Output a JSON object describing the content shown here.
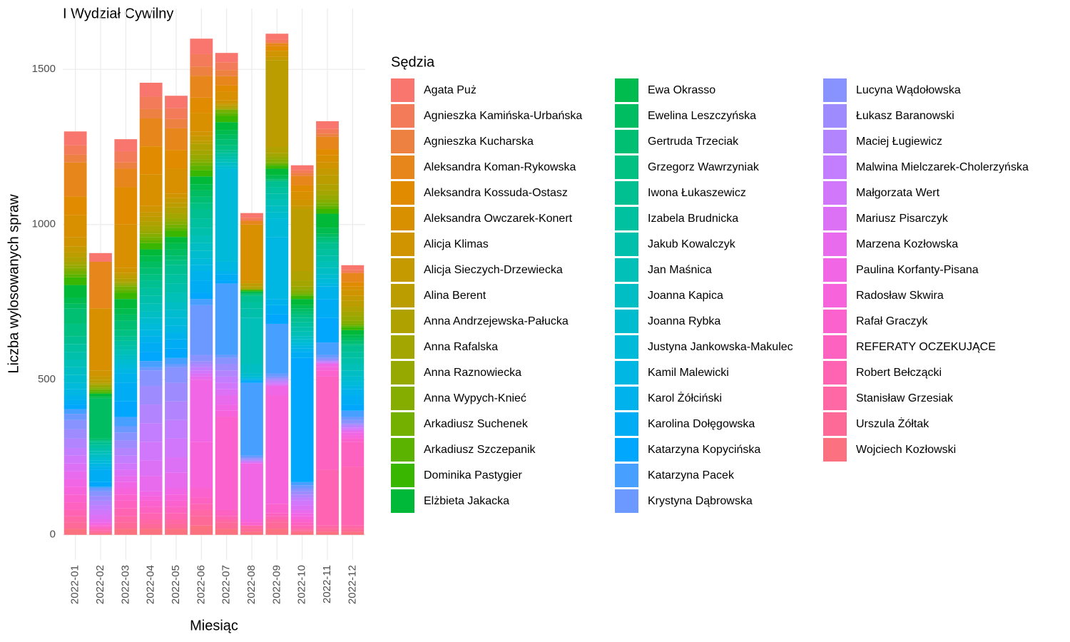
{
  "chart_data": {
    "type": "bar",
    "stacked": true,
    "title": "I Wydział Cywilny",
    "x_label": "Miesiąc",
    "y_label": "Liczba wylosowanych spraw",
    "legend_title": "Sędzia",
    "categories": [
      "2022-01",
      "2022-02",
      "2022-03",
      "2022-04",
      "2022-05",
      "2022-06",
      "2022-07",
      "2022-08",
      "2022-09",
      "2022-10",
      "2022-11",
      "2022-12"
    ],
    "ylim": [
      -81,
      1696
    ],
    "yticks": [
      0,
      500,
      1000,
      1500
    ],
    "grid": true,
    "legend_position": "right",
    "series": [
      {
        "name": "Agata Puż",
        "color": "#F8766D",
        "values": [
          45,
          28,
          40,
          45,
          40,
          50,
          30,
          15,
          20,
          15,
          25,
          15
        ]
      },
      {
        "name": "Agnieszka Kamińska-Urbańska",
        "color": "#F37B59",
        "values": [
          30,
          0,
          35,
          40,
          35,
          40,
          25,
          10,
          10,
          10,
          15,
          10
        ]
      },
      {
        "name": "Agnieszka Kucharska",
        "color": "#ED8141",
        "values": [
          25,
          0,
          20,
          30,
          30,
          30,
          20,
          0,
          0,
          10,
          10,
          0
        ]
      },
      {
        "name": "Aleksandra Koman-Rykowska",
        "color": "#E7861B",
        "values": [
          110,
          150,
          60,
          90,
          70,
          70,
          30,
          12,
          10,
          30,
          40,
          30
        ]
      },
      {
        "name": "Aleksandra Kossuda-Ostasz",
        "color": "#E08B00",
        "values": [
          60,
          0,
          120,
          90,
          60,
          50,
          20,
          0,
          15,
          20,
          20,
          14
        ]
      },
      {
        "name": "Aleksandra Owczarek-Konert",
        "color": "#D89000",
        "values": [
          70,
          200,
          140,
          102,
          80,
          59,
          28,
          180,
          0,
          26,
          23,
          10
        ]
      },
      {
        "name": "Alicja Klimas",
        "color": "#CF9400",
        "values": [
          30,
          20,
          15,
          20,
          15,
          15,
          10,
          10,
          20,
          20,
          20,
          20
        ]
      },
      {
        "name": "Alicja Sieczych-Drzewiecka",
        "color": "#C59900",
        "values": [
          20,
          10,
          10,
          15,
          15,
          15,
          5,
          0,
          10,
          10,
          20,
          15
        ]
      },
      {
        "name": "Alina Berent",
        "color": "#BB9D00",
        "values": [
          15,
          10,
          10,
          15,
          15,
          10,
          5,
          10,
          280,
          200,
          30,
          20
        ]
      },
      {
        "name": "Anna Andrzejewska-Pałucka",
        "color": "#AFA100",
        "values": [
          15,
          5,
          10,
          15,
          20,
          20,
          5,
          5,
          20,
          30,
          20,
          15
        ]
      },
      {
        "name": "Anna Rafalska",
        "color": "#A3A500",
        "values": [
          10,
          5,
          5,
          15,
          15,
          15,
          5,
          5,
          10,
          20,
          15,
          15
        ]
      },
      {
        "name": "Anna Raznowiecka",
        "color": "#95A900",
        "values": [
          10,
          5,
          5,
          10,
          10,
          15,
          0,
          0,
          10,
          10,
          15,
          15
        ]
      },
      {
        "name": "Anna Wypych-Knieć",
        "color": "#85AD00",
        "values": [
          10,
          5,
          5,
          10,
          10,
          10,
          0,
          0,
          10,
          10,
          10,
          10
        ]
      },
      {
        "name": "Arkadiusz Suchenek",
        "color": "#73B000",
        "values": [
          10,
          5,
          10,
          10,
          10,
          10,
          10,
          0,
          5,
          5,
          10,
          5
        ]
      },
      {
        "name": "Arkadiusz Szczepanik",
        "color": "#5BB300",
        "values": [
          10,
          5,
          10,
          10,
          10,
          15,
          10,
          0,
          5,
          5,
          10,
          5
        ]
      },
      {
        "name": "Dominika Pastygier",
        "color": "#39B600",
        "values": [
          25,
          5,
          20,
          20,
          20,
          20,
          20,
          5,
          10,
          10,
          15,
          10
        ]
      },
      {
        "name": "Elżbieta Jakacka",
        "color": "#00B938",
        "values": [
          40,
          10,
          30,
          20,
          20,
          25,
          25,
          5,
          20,
          20,
          45,
          15
        ]
      },
      {
        "name": "Ewa Okrasso",
        "color": "#00BB4E",
        "values": [
          20,
          5,
          20,
          20,
          20,
          20,
          15,
          0,
          10,
          10,
          20,
          10
        ]
      },
      {
        "name": "Ewelina Leszczyńska",
        "color": "#00BD61",
        "values": [
          15,
          130,
          20,
          20,
          20,
          20,
          15,
          5,
          5,
          10,
          10,
          10
        ]
      },
      {
        "name": "Gertruda Trzeciak",
        "color": "#00BF72",
        "values": [
          50,
          5,
          30,
          20,
          15,
          20,
          20,
          5,
          5,
          10,
          10,
          10
        ]
      },
      {
        "name": "Grzegorz Wawrzyniak",
        "color": "#00C082",
        "values": [
          40,
          5,
          20,
          20,
          15,
          20,
          15,
          0,
          0,
          10,
          10,
          5
        ]
      },
      {
        "name": "Iwona Łukaszewicz",
        "color": "#00C091",
        "values": [
          25,
          10,
          15,
          25,
          30,
          30,
          10,
          20,
          20,
          15,
          20,
          20
        ]
      },
      {
        "name": "Izabela Brudnicka",
        "color": "#00C19F",
        "values": [
          25,
          10,
          15,
          25,
          30,
          30,
          10,
          20,
          20,
          15,
          20,
          20
        ]
      },
      {
        "name": "Jakub Kowalczyk",
        "color": "#00C0AC",
        "values": [
          25,
          10,
          15,
          25,
          30,
          25,
          10,
          30,
          20,
          15,
          20,
          20
        ]
      },
      {
        "name": "Jan Maśnica",
        "color": "#00C0B8",
        "values": [
          25,
          10,
          15,
          25,
          30,
          25,
          10,
          150,
          20,
          15,
          20,
          20
        ]
      },
      {
        "name": "Joanna Kapica",
        "color": "#00BEC4",
        "values": [
          25,
          10,
          15,
          20,
          25,
          25,
          10,
          30,
          20,
          10,
          20,
          20
        ]
      },
      {
        "name": "Joanna Rybka",
        "color": "#00BCCF",
        "values": [
          25,
          10,
          15,
          20,
          25,
          25,
          10,
          10,
          20,
          10,
          15,
          15
        ]
      },
      {
        "name": "Justyna Jankowska-Makulec",
        "color": "#00BAD9",
        "values": [
          20,
          10,
          15,
          20,
          25,
          20,
          300,
          5,
          60,
          10,
          15,
          15
        ]
      },
      {
        "name": "Kamil Malewicki",
        "color": "#00B6E3",
        "values": [
          20,
          10,
          15,
          20,
          25,
          20,
          30,
          5,
          200,
          10,
          10,
          10
        ]
      },
      {
        "name": "Karol Żółciński",
        "color": "#00B2EC",
        "values": [
          15,
          10,
          30,
          20,
          20,
          30,
          10,
          0,
          20,
          10,
          40,
          20
        ]
      },
      {
        "name": "Karolina Dołęgowska",
        "color": "#00ADF5",
        "values": [
          15,
          40,
          60,
          30,
          30,
          40,
          20,
          5,
          30,
          20,
          60,
          30
        ]
      },
      {
        "name": "Katarzyna Kopycińska",
        "color": "#00A7FC",
        "values": [
          15,
          15,
          50,
          30,
          30,
          20,
          10,
          5,
          30,
          400,
          80,
          20
        ]
      },
      {
        "name": "Katarzyna Pacek",
        "color": "#47A0FF",
        "values": [
          15,
          5,
          30,
          20,
          20,
          20,
          230,
          235,
          160,
          10,
          40,
          20
        ]
      },
      {
        "name": "Krystyna Dąbrowska",
        "color": "#6C99FF",
        "values": [
          20,
          10,
          20,
          10,
          10,
          160,
          10,
          5,
          10,
          10,
          10,
          10
        ]
      },
      {
        "name": "Lucyna Wądołowska",
        "color": "#8893FF",
        "values": [
          30,
          15,
          25,
          50,
          50,
          20,
          20,
          5,
          5,
          10,
          5,
          10
        ]
      },
      {
        "name": "Łukasz Baranowski",
        "color": "#9E8CFF",
        "values": [
          30,
          15,
          25,
          60,
          60,
          10,
          20,
          5,
          5,
          10,
          5,
          5
        ]
      },
      {
        "name": "Maciej Ługiewicz",
        "color": "#B285FF",
        "values": [
          30,
          15,
          25,
          60,
          60,
          10,
          20,
          0,
          5,
          10,
          0,
          5
        ]
      },
      {
        "name": "Malwina Mielczarek-Cholerzyńska",
        "color": "#C37EFF",
        "values": [
          25,
          15,
          25,
          60,
          60,
          10,
          20,
          5,
          5,
          10,
          5,
          5
        ]
      },
      {
        "name": "Małgorzata Wert",
        "color": "#D177FC",
        "values": [
          25,
          15,
          20,
          60,
          60,
          10,
          20,
          0,
          5,
          15,
          0,
          5
        ]
      },
      {
        "name": "Mariusz Pisarczyk",
        "color": "#DD71F6",
        "values": [
          25,
          15,
          20,
          50,
          50,
          10,
          20,
          5,
          5,
          15,
          5,
          5
        ]
      },
      {
        "name": "Marzena Kozłowska",
        "color": "#E86BEE",
        "values": [
          25,
          10,
          20,
          50,
          50,
          10,
          30,
          0,
          0,
          10,
          0,
          5
        ]
      },
      {
        "name": "Paulina Korfanty-Pisana",
        "color": "#F066E4",
        "values": [
          25,
          5,
          20,
          15,
          20,
          200,
          20,
          180,
          30,
          10,
          10,
          10
        ]
      },
      {
        "name": "Radosław Skwira",
        "color": "#F763DA",
        "values": [
          25,
          5,
          20,
          15,
          20,
          150,
          20,
          10,
          350,
          10,
          10,
          10
        ]
      },
      {
        "name": "Rafał Graczyk",
        "color": "#FB62CE",
        "values": [
          25,
          5,
          20,
          20,
          20,
          30,
          300,
          10,
          30,
          10,
          20,
          10
        ]
      },
      {
        "name": "REFERATY OCZEKUJĄCE",
        "color": "#FE62C1",
        "values": [
          25,
          5,
          25,
          20,
          20,
          20,
          20,
          0,
          10,
          10,
          300,
          80
        ]
      },
      {
        "name": "Robert Bełczącki",
        "color": "#FF64B3",
        "values": [
          20,
          5,
          25,
          20,
          20,
          20,
          10,
          0,
          10,
          10,
          180,
          190
        ]
      },
      {
        "name": "Stanisław Grzesiak",
        "color": "#FF67A5",
        "values": [
          20,
          5,
          20,
          15,
          15,
          20,
          10,
          10,
          10,
          5,
          10,
          10
        ]
      },
      {
        "name": "Urszula Żółtak",
        "color": "#FE6A97",
        "values": [
          20,
          5,
          20,
          15,
          15,
          30,
          20,
          10,
          20,
          5,
          10,
          10
        ]
      },
      {
        "name": "Wojciech Kozłowski",
        "color": "#FC717F",
        "values": [
          20,
          5,
          20,
          20,
          20,
          30,
          20,
          10,
          20,
          10,
          10,
          10
        ]
      }
    ]
  }
}
